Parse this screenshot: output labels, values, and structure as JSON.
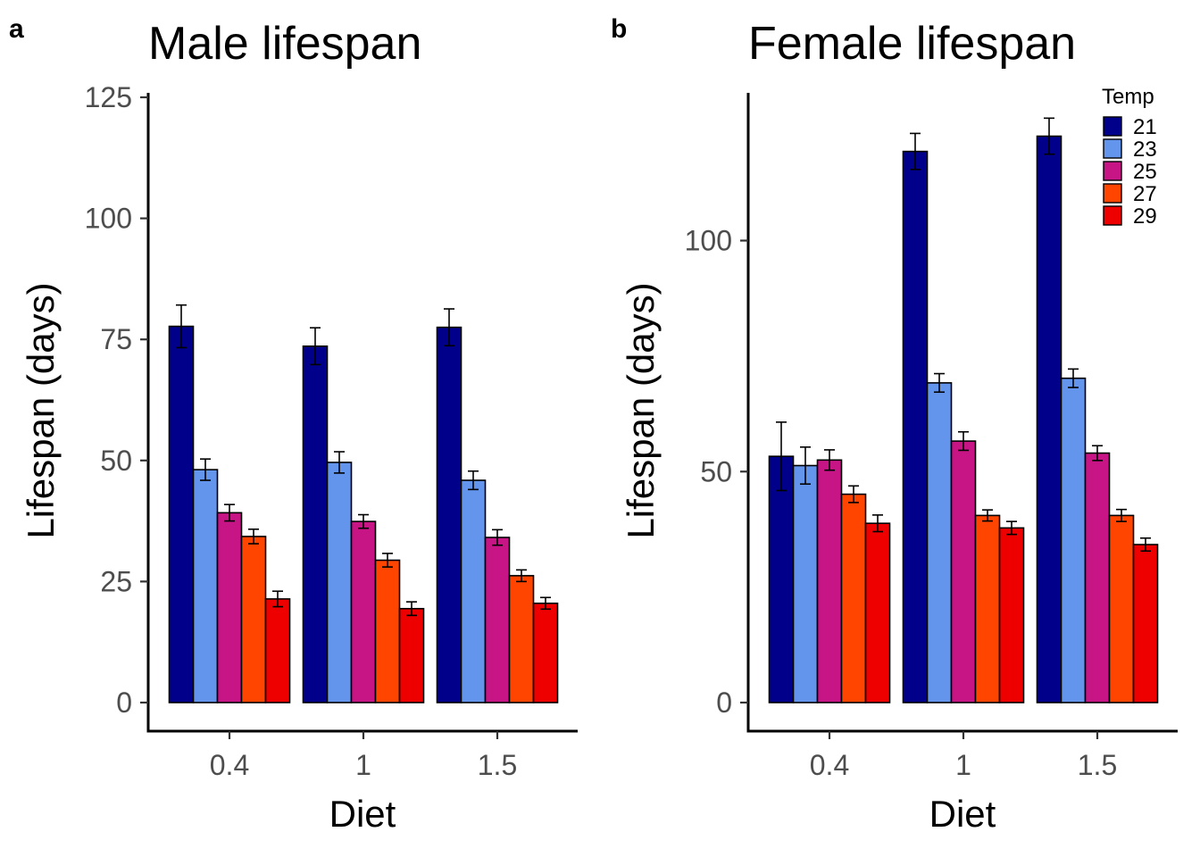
{
  "panels": [
    {
      "letter": "a"
    },
    {
      "letter": "b"
    }
  ],
  "legend": {
    "title": "Temp",
    "items": [
      "21",
      "23",
      "25",
      "27",
      "29"
    ]
  },
  "colors": {
    "21": "#00008b",
    "23": "#6495ed",
    "25": "#c71585",
    "27": "#ff4500",
    "29": "#ee0000"
  },
  "chart_data": [
    {
      "type": "bar",
      "title": "Male lifespan",
      "xlabel": "Diet",
      "ylabel": "Lifespan (days)",
      "categories": [
        "0.4",
        "1",
        "1.5"
      ],
      "ylim": [
        0,
        125
      ],
      "yticks": [
        "0",
        "25",
        "50",
        "75",
        "100",
        "125"
      ],
      "grid": false,
      "legend": "none",
      "series": [
        {
          "name": "21",
          "values": [
            77.7,
            73.6,
            77.5
          ],
          "errors": [
            4.4,
            3.8,
            3.8
          ]
        },
        {
          "name": "23",
          "values": [
            48.1,
            49.6,
            45.9
          ],
          "errors": [
            2.2,
            2.2,
            1.9
          ]
        },
        {
          "name": "25",
          "values": [
            39.2,
            37.4,
            34.1
          ],
          "errors": [
            1.7,
            1.4,
            1.6
          ]
        },
        {
          "name": "27",
          "values": [
            34.3,
            29.4,
            26.2
          ],
          "errors": [
            1.5,
            1.4,
            1.2
          ]
        },
        {
          "name": "29",
          "values": [
            21.4,
            19.4,
            20.5
          ],
          "errors": [
            1.6,
            1.4,
            1.2
          ]
        }
      ]
    },
    {
      "type": "bar",
      "title": "Female lifespan",
      "xlabel": "Diet",
      "ylabel": "Lifespan (days)",
      "categories": [
        "0.4",
        "1",
        "1.5"
      ],
      "ylim": [
        0,
        130
      ],
      "yticks": [
        "0",
        "50",
        "100"
      ],
      "grid": false,
      "legend": "top-right",
      "series": [
        {
          "name": "21",
          "values": [
            53.3,
            119.3,
            122.6
          ],
          "errors": [
            7.4,
            3.9,
            3.9
          ]
        },
        {
          "name": "23",
          "values": [
            51.3,
            69.2,
            70.2
          ],
          "errors": [
            4.0,
            2.0,
            2.0
          ]
        },
        {
          "name": "25",
          "values": [
            52.5,
            56.6,
            54.0
          ],
          "errors": [
            2.2,
            2.0,
            1.6
          ]
        },
        {
          "name": "27",
          "values": [
            45.1,
            40.5,
            40.5
          ],
          "errors": [
            1.8,
            1.2,
            1.3
          ]
        },
        {
          "name": "29",
          "values": [
            38.8,
            37.8,
            34.2
          ],
          "errors": [
            1.8,
            1.4,
            1.4
          ]
        }
      ]
    }
  ]
}
